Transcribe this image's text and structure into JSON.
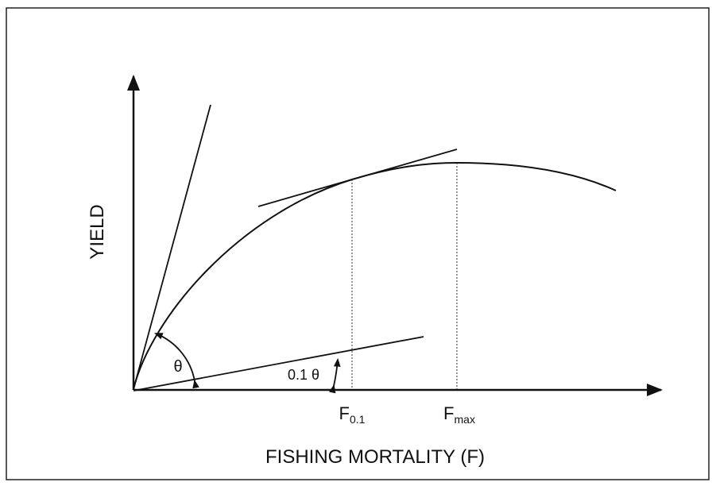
{
  "axes": {
    "y_label": "YIELD",
    "x_label": "FISHING MORTALITY (F)"
  },
  "angles": {
    "theta": "θ",
    "tenth_theta": "0.1 θ"
  },
  "markers": [
    {
      "main": "F",
      "sub": "0.1"
    },
    {
      "main": "F",
      "sub": "max"
    }
  ]
}
